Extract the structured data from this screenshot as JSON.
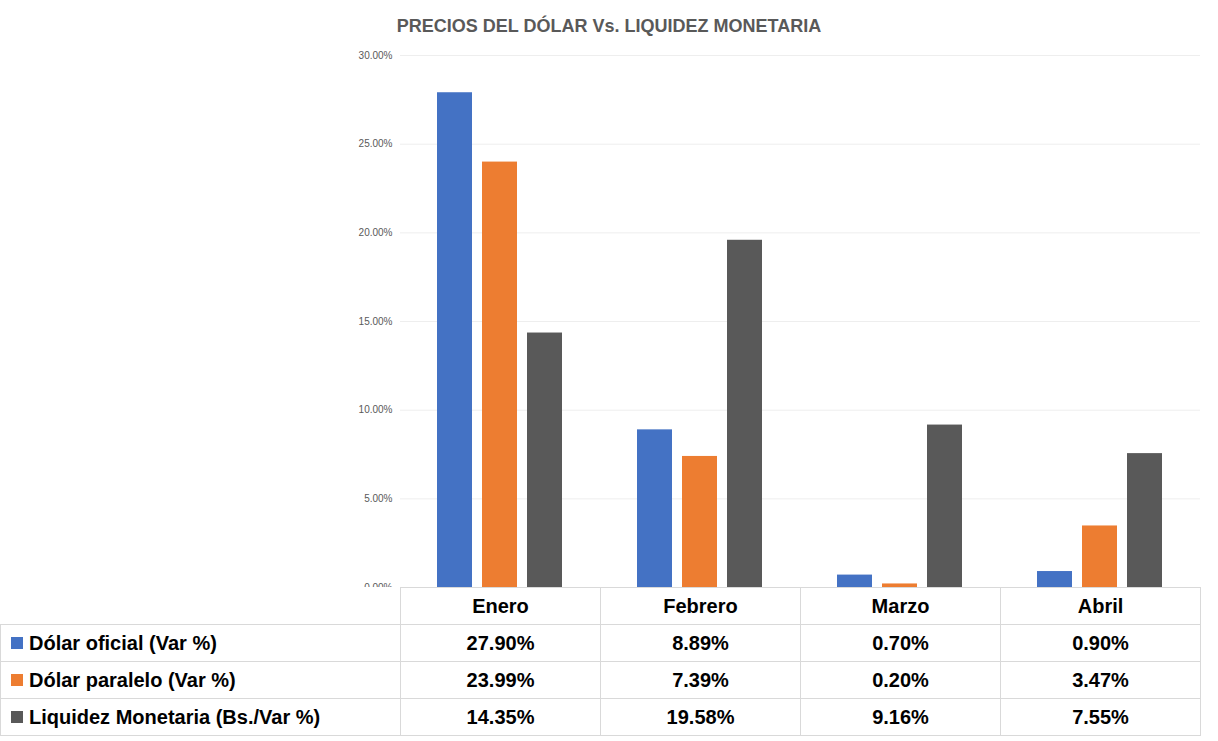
{
  "chart_data": {
    "type": "bar",
    "title": "PRECIOS DEL DÓLAR Vs. LIQUIDEZ MONETARIA",
    "categories": [
      "Enero",
      "Febrero",
      "Marzo",
      "Abril"
    ],
    "series": [
      {
        "name": "Dólar oficial (Var %)",
        "color": "#4472c4",
        "values": [
          27.9,
          8.89,
          0.7,
          0.9
        ],
        "value_labels": [
          "27.90%",
          "8.89%",
          "0.70%",
          "0.90%"
        ]
      },
      {
        "name": "Dólar paralelo (Var %)",
        "color": "#ed7d31",
        "values": [
          23.99,
          7.39,
          0.2,
          3.47
        ],
        "value_labels": [
          "23.99%",
          "7.39%",
          "0.20%",
          "3.47%"
        ]
      },
      {
        "name": "Liquidez Monetaria (Bs./Var %)",
        "color": "#595959",
        "values": [
          14.35,
          19.58,
          9.16,
          7.55
        ],
        "value_labels": [
          "14.35%",
          "19.58%",
          "9.16%",
          "7.55%"
        ]
      }
    ],
    "ylim": [
      0,
      30
    ],
    "yticks": [
      {
        "value": 0,
        "label": "0.00%"
      },
      {
        "value": 5,
        "label": "5.00%"
      },
      {
        "value": 10,
        "label": "10.00%"
      },
      {
        "value": 15,
        "label": "15.00%"
      },
      {
        "value": 20,
        "label": "20.00%"
      },
      {
        "value": 25,
        "label": "25.00%"
      },
      {
        "value": 30,
        "label": "30.00%"
      }
    ],
    "grid": true
  }
}
